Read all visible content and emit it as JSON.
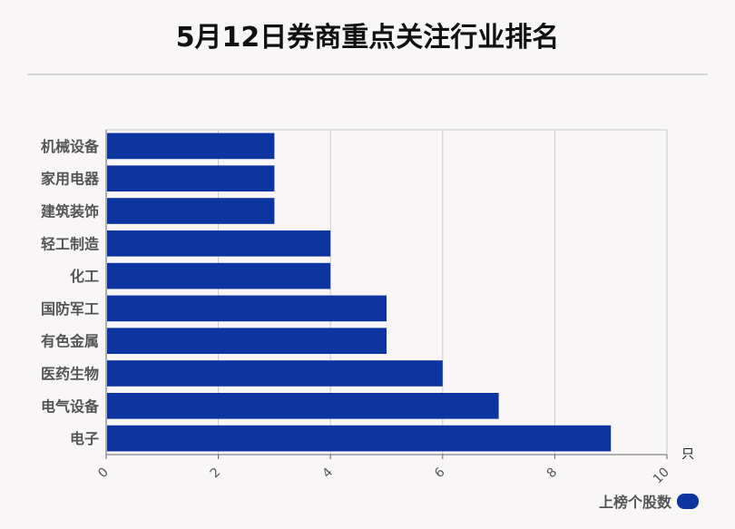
{
  "title": "5月12日券商重点关注行业排名",
  "chart_data": {
    "type": "bar",
    "orientation": "horizontal",
    "categories": [
      "机械设备",
      "家用电器",
      "建筑装饰",
      "轻工制造",
      "化工",
      "国防军工",
      "有色金属",
      "医药生物",
      "电气设备",
      "电子"
    ],
    "series": [
      {
        "name": "上榜个股数",
        "values": [
          3,
          3,
          3,
          4,
          4,
          5,
          5,
          6,
          7,
          9
        ]
      }
    ],
    "x_ticks": [
      "0",
      "2",
      "4",
      "6",
      "8",
      "10"
    ],
    "xlim": [
      0,
      10
    ],
    "x_unit": "只",
    "grid": true,
    "legend_position": "bottom-right"
  },
  "colors": {
    "bar": "#0d35a0",
    "grid": "#cccccc",
    "axis": "#666666",
    "label": "#555555"
  }
}
